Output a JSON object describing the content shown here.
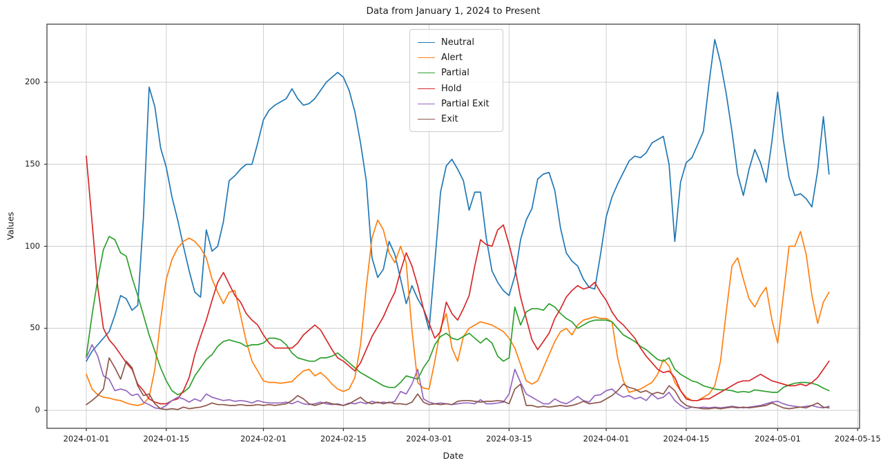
{
  "chart_data": {
    "type": "line",
    "title": "Data from January 1, 2024 to Present",
    "xlabel": "Date",
    "ylabel": "Values",
    "x_start_date": "2024-01-01",
    "x_tick_labels": [
      "2024-01-01",
      "2024-01-15",
      "2024-02-01",
      "2024-02-15",
      "2024-03-01",
      "2024-03-15",
      "2024-04-01",
      "2024-04-15",
      "2024-05-01",
      "2024-05-15"
    ],
    "x_tick_days": [
      0,
      14,
      31,
      45,
      60,
      74,
      91,
      105,
      121,
      135
    ],
    "y_ticks": [
      0,
      50,
      100,
      150,
      200
    ],
    "ylim": [
      -10.9,
      235.4
    ],
    "xlim_days": [
      -6.9,
      135.3
    ],
    "grid": true,
    "legend_position": "upper center",
    "colors": {
      "background": "#ffffff",
      "grid": "#cccccc",
      "spine": "#333333",
      "text": "#1a1a1a"
    },
    "series": [
      {
        "name": "Neutral",
        "color": "#1f77b4",
        "values": [
          30,
          36,
          40,
          44,
          48,
          58,
          70,
          68,
          61,
          64,
          118,
          197,
          185,
          160,
          148,
          130,
          116,
          100,
          85,
          72,
          69,
          110,
          97,
          100,
          115,
          140,
          143,
          147,
          150,
          150,
          163,
          177,
          183,
          186,
          188,
          190,
          196,
          190,
          186,
          187,
          190,
          195,
          200,
          203,
          206,
          203,
          195,
          182,
          163,
          140,
          93,
          81,
          86,
          103,
          95,
          80,
          65,
          76,
          68,
          62,
          49,
          90,
          133,
          149,
          153,
          147,
          140,
          122,
          133,
          133,
          105,
          85,
          78,
          73,
          70,
          82,
          104,
          116,
          123,
          141,
          144,
          145,
          134,
          111,
          96,
          91,
          88,
          80,
          75,
          74,
          95,
          118,
          130,
          138,
          145,
          152,
          155,
          154,
          157,
          163,
          165,
          167,
          150,
          103,
          139,
          151,
          154,
          162,
          170,
          200,
          226,
          212,
          193,
          170,
          144,
          131,
          147,
          159,
          151,
          139,
          164,
          194,
          165,
          142,
          131,
          132,
          129,
          124,
          146,
          179,
          144
        ]
      },
      {
        "name": "Alert",
        "color": "#ff7f0e",
        "values": [
          22,
          13,
          9.5,
          8,
          7.5,
          6.5,
          6,
          4.5,
          3.5,
          3,
          4,
          8,
          25,
          55,
          80,
          92,
          99,
          103,
          105,
          103,
          99,
          93,
          80,
          72,
          65,
          72,
          73,
          58,
          42,
          30,
          24,
          18,
          17,
          17,
          16.5,
          17,
          17.5,
          21,
          24,
          25,
          21,
          23,
          20,
          16,
          13,
          11.5,
          13,
          20,
          40,
          75,
          105,
          116,
          110,
          96,
          90,
          100,
          90,
          49,
          17,
          13.5,
          13,
          30,
          50,
          59,
          38,
          30,
          45,
          50,
          52,
          54,
          53,
          52,
          50,
          48,
          44,
          38,
          28,
          18,
          16,
          18,
          26,
          34,
          42,
          48,
          50,
          46,
          52,
          55,
          56,
          57,
          56,
          56,
          54,
          32,
          18,
          11,
          12,
          13,
          15,
          17,
          22,
          31,
          27,
          17,
          12,
          8,
          6,
          6,
          8,
          10,
          15,
          30,
          60,
          88,
          93,
          80,
          68,
          63,
          70,
          75,
          55,
          41,
          70,
          100,
          100,
          109,
          95,
          70,
          53,
          66,
          72
        ]
      },
      {
        "name": "Partial",
        "color": "#2ca02c",
        "values": [
          33,
          58,
          80,
          98,
          106,
          104,
          96,
          94,
          81,
          70,
          58,
          46,
          36,
          26,
          18,
          12,
          9.5,
          11,
          14,
          21,
          26,
          31,
          34,
          39,
          42,
          43,
          42,
          41,
          39,
          40,
          40,
          41,
          44,
          44,
          43,
          40,
          35,
          32,
          31,
          30,
          30,
          32,
          32,
          33,
          35,
          32,
          29,
          26,
          23,
          21,
          19,
          17,
          15,
          14,
          14,
          17,
          21,
          20,
          19,
          26,
          31,
          40,
          45,
          47,
          44,
          43,
          45,
          47,
          44,
          41,
          44,
          41,
          33,
          30,
          32,
          63,
          52,
          60,
          62,
          62,
          61,
          65,
          63,
          59,
          56,
          54,
          50,
          52,
          54,
          55,
          55,
          55,
          54,
          50,
          46,
          44,
          42,
          39,
          37,
          34,
          31,
          30,
          32,
          25,
          22,
          20,
          18,
          17,
          15,
          14,
          13,
          12.5,
          12.5,
          12,
          11,
          11.5,
          11,
          12.5,
          12,
          11.5,
          11,
          11,
          14,
          15.5,
          16.5,
          17,
          17,
          16.5,
          15.5,
          13.5,
          12
        ]
      },
      {
        "name": "Hold",
        "color": "#d62728",
        "values": [
          155,
          115,
          75,
          50,
          43,
          39,
          34,
          29,
          25,
          16,
          12,
          7,
          5,
          4,
          4,
          6,
          7,
          12,
          20,
          34,
          45,
          55,
          67,
          78,
          84,
          77,
          70,
          66,
          59,
          55,
          52,
          46,
          41,
          38,
          38,
          38,
          38,
          41,
          46,
          49,
          52,
          49,
          43,
          37,
          32,
          30,
          27,
          24,
          29,
          37,
          45,
          51,
          57,
          65,
          72,
          85,
          96,
          88,
          76,
          62,
          53,
          44,
          48,
          66,
          59,
          55,
          62,
          70,
          88,
          104,
          101,
          100,
          110,
          113,
          101,
          87,
          69,
          56,
          43,
          37,
          42,
          47,
          56,
          62,
          69,
          73,
          76,
          74,
          75,
          78,
          72,
          67,
          60,
          55,
          52,
          48,
          44,
          38,
          33,
          29,
          25,
          23,
          24,
          20,
          12,
          7,
          6,
          6,
          7,
          7,
          9,
          11,
          13,
          15,
          17,
          18,
          18,
          20,
          22,
          20,
          18,
          17,
          16,
          15,
          15,
          16,
          15,
          17,
          20,
          25,
          30
        ]
      },
      {
        "name": "Partial Exit",
        "color": "#9467bd",
        "values": [
          32,
          40,
          33,
          21,
          19,
          12,
          13,
          12,
          9,
          10,
          5,
          3.5,
          1.5,
          1,
          3,
          6,
          8,
          7,
          5,
          7,
          5.5,
          10,
          8,
          7,
          6,
          6.5,
          5.5,
          6,
          5.5,
          4.5,
          6,
          5,
          4.5,
          4.5,
          4.5,
          5,
          4,
          5.5,
          4,
          3.5,
          4,
          5,
          4,
          3.5,
          4,
          3,
          4.5,
          4,
          5,
          4,
          5.5,
          4.5,
          5,
          4.5,
          5.5,
          11.5,
          10,
          16,
          25,
          7,
          5,
          4,
          4.5,
          4,
          3.5,
          4,
          4.5,
          4.5,
          4,
          6.5,
          4,
          4,
          4.5,
          5,
          10,
          25,
          17,
          10,
          8,
          6,
          4,
          4,
          7,
          5,
          4,
          6,
          8.5,
          6,
          5,
          9,
          9.5,
          12,
          13,
          10,
          8,
          9,
          7,
          8,
          6,
          10,
          7,
          8,
          11,
          6,
          3,
          1,
          2,
          1.5,
          2,
          1.5,
          2,
          1.5,
          2,
          2.5,
          2,
          1.5,
          2,
          2.5,
          3,
          4,
          5,
          5.5,
          4,
          3,
          2.5,
          2,
          2.5,
          3,
          2,
          1.5,
          2.5
        ]
      },
      {
        "name": "Exit",
        "color": "#8c564b",
        "values": [
          3.5,
          6,
          9,
          13,
          32,
          26,
          19,
          30,
          26,
          15,
          9,
          10,
          4,
          1,
          0.5,
          1,
          0.5,
          2,
          1,
          1.5,
          2,
          3,
          4.5,
          3.5,
          3.5,
          3,
          3,
          3.5,
          3,
          3,
          3.5,
          3,
          3.5,
          3,
          3.5,
          4,
          6,
          9,
          7,
          4,
          3,
          4,
          5,
          4,
          3.5,
          3,
          4,
          6,
          8,
          5,
          4,
          5,
          4,
          5,
          4,
          4,
          3.5,
          5,
          10,
          5,
          3.5,
          4,
          3.5,
          4,
          3.5,
          5.5,
          6,
          6,
          5.5,
          5,
          5.5,
          5.5,
          6,
          5.5,
          4,
          13,
          16,
          3,
          3,
          2,
          2.5,
          2,
          2.5,
          3,
          2.5,
          3,
          4,
          5.5,
          4,
          4.5,
          5,
          7,
          9,
          12,
          16,
          14,
          13,
          11,
          12,
          10,
          11,
          10,
          15,
          12,
          6,
          3,
          2,
          1.5,
          1,
          1,
          1.5,
          1,
          1.5,
          2,
          1.5,
          2,
          1.5,
          2,
          2.5,
          3,
          4.5,
          3,
          1.5,
          1,
          1.5,
          2,
          1.5,
          3,
          4.5,
          2,
          1.5
        ]
      }
    ]
  }
}
